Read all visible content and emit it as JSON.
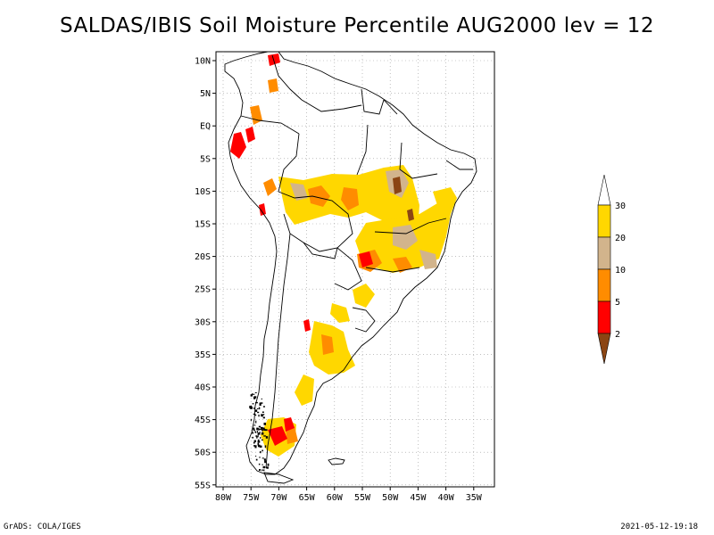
{
  "title": "SALDAS/IBIS Soil Moisture Percentile AUG2000 lev = 12",
  "footer": {
    "left": "GrADS: COLA/IGES",
    "right": "2021-05-12-19:18"
  },
  "axes": {
    "lat_labels": [
      "10N",
      "5N",
      "EQ",
      "5S",
      "10S",
      "15S",
      "20S",
      "25S",
      "30S",
      "35S",
      "40S",
      "45S",
      "50S",
      "55S"
    ],
    "lon_labels": [
      "80W",
      "75W",
      "70W",
      "65W",
      "60W",
      "55W",
      "50W",
      "45W",
      "40W",
      "35W"
    ]
  },
  "legend": {
    "entries": [
      {
        "label": "2",
        "color": "#8B4513"
      },
      {
        "label": "5",
        "color": "#ff0000"
      },
      {
        "label": "10",
        "color": "#ff8c00"
      },
      {
        "label": "20",
        "color": "#d2b48c"
      },
      {
        "label": "30",
        "color": "#ffd700"
      }
    ],
    "top_color": "#ffffff"
  },
  "colors": {
    "brown": "#8B4513",
    "red": "#ff0000",
    "orange": "#ff8c00",
    "tan": "#d2b48c",
    "gold": "#ffd700"
  }
}
